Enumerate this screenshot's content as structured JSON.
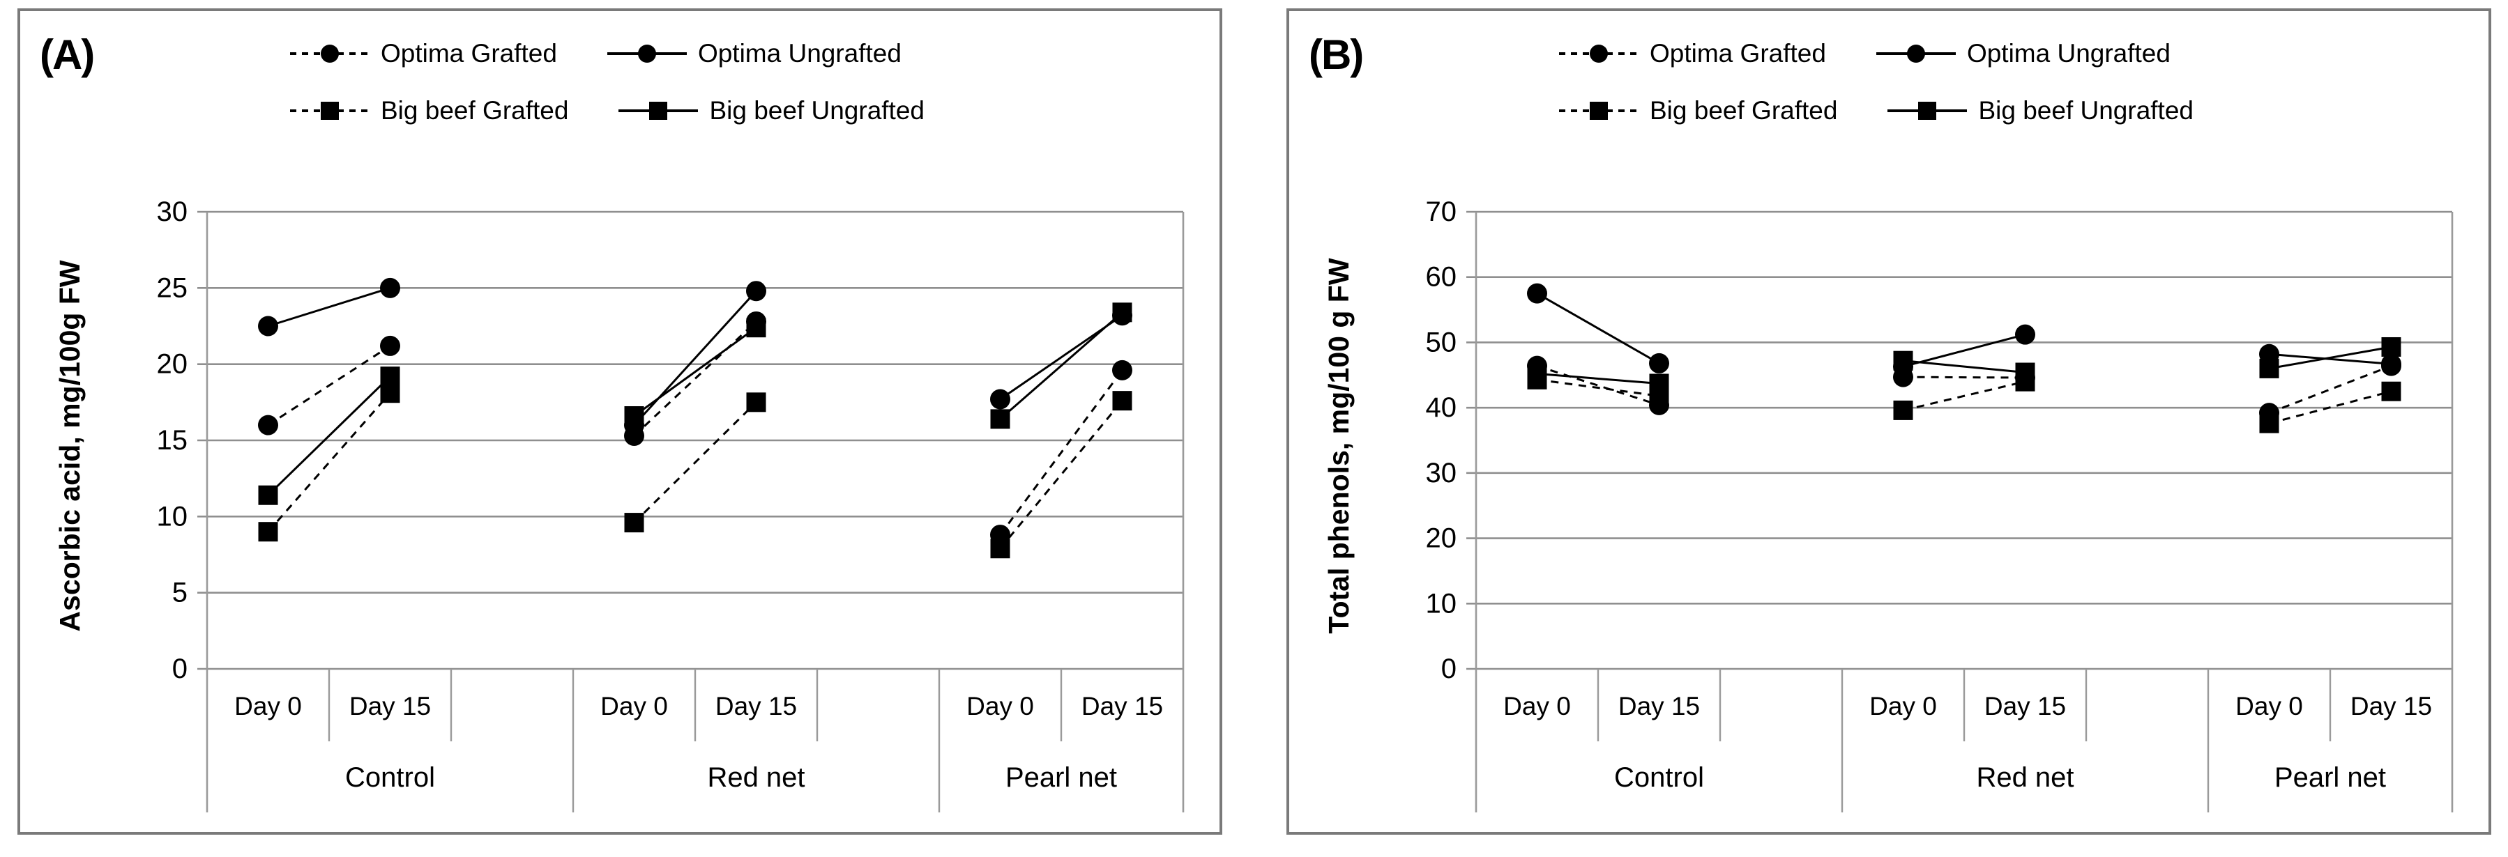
{
  "colors": {
    "data": "#000000",
    "grid": "#8f8f8f",
    "separator": "#9a9a9a",
    "panel_border": "#7a7a7a",
    "text": "#000000",
    "background": "#ffffff"
  },
  "legend": {
    "rows": [
      [
        "Optima Grafted",
        "Optima Ungrafted"
      ],
      [
        "Big beef Grafted",
        "Big beef Ungrafted"
      ]
    ]
  },
  "panels": [
    {
      "label": "(A)",
      "y_axis_title": "Ascorbic acid, mg/100g FW"
    },
    {
      "label": "(B)",
      "y_axis_title": "Total phenols, mg/100 g FW"
    }
  ],
  "chart_data": [
    {
      "type": "line",
      "title": "(A)",
      "ylabel": "Ascorbic acid, mg/100g FW",
      "xlabel": "",
      "ylim": [
        0,
        30
      ],
      "ytick_step": 5,
      "grid": true,
      "legend_position": "top",
      "groups": [
        "Control",
        "Red net",
        "Pearl net"
      ],
      "x_sublabels": [
        "Day 0",
        "Day 15"
      ],
      "x_order_note": "values are [Control Day0, Control Day15, Red net Day0, Red net Day15, Pearl net Day0, Pearl net Day15]",
      "series": [
        {
          "name": "Optima Grafted",
          "marker": "circle",
          "line": "dashed",
          "values": [
            16.0,
            21.2,
            15.3,
            22.8,
            8.8,
            19.6
          ]
        },
        {
          "name": "Optima Ungrafted",
          "marker": "circle",
          "line": "solid",
          "values": [
            22.5,
            25.0,
            16.0,
            24.8,
            17.7,
            23.2
          ]
        },
        {
          "name": "Big beef Grafted",
          "marker": "square",
          "line": "dashed",
          "values": [
            9.0,
            18.1,
            9.6,
            17.5,
            7.9,
            17.6
          ]
        },
        {
          "name": "Big beef Ungrafted",
          "marker": "square",
          "line": "solid",
          "values": [
            11.4,
            19.2,
            16.6,
            22.4,
            16.4,
            23.4
          ]
        }
      ]
    },
    {
      "type": "line",
      "title": "(B)",
      "ylabel": "Total phenols, mg/100 g FW",
      "xlabel": "",
      "ylim": [
        0,
        70
      ],
      "ytick_step": 10,
      "grid": true,
      "legend_position": "top",
      "groups": [
        "Control",
        "Red net",
        "Pearl net"
      ],
      "x_sublabels": [
        "Day 0",
        "Day 15"
      ],
      "x_order_note": "values are [Control Day0, Control Day15, Red net Day0, Red net Day15, Pearl net Day0, Pearl net Day15]",
      "series": [
        {
          "name": "Optima Grafted",
          "marker": "circle",
          "line": "dashed",
          "values": [
            46.4,
            40.4,
            44.7,
            44.6,
            39.2,
            46.4
          ]
        },
        {
          "name": "Optima Ungrafted",
          "marker": "circle",
          "line": "solid",
          "values": [
            57.5,
            46.8,
            46.3,
            51.2,
            48.2,
            46.7
          ]
        },
        {
          "name": "Big beef Grafted",
          "marker": "square",
          "line": "dashed",
          "values": [
            44.3,
            41.8,
            39.6,
            44.0,
            37.6,
            42.5
          ]
        },
        {
          "name": "Big beef Ungrafted",
          "marker": "square",
          "line": "solid",
          "values": [
            45.2,
            43.7,
            47.2,
            45.4,
            46.0,
            49.3
          ]
        }
      ]
    }
  ]
}
